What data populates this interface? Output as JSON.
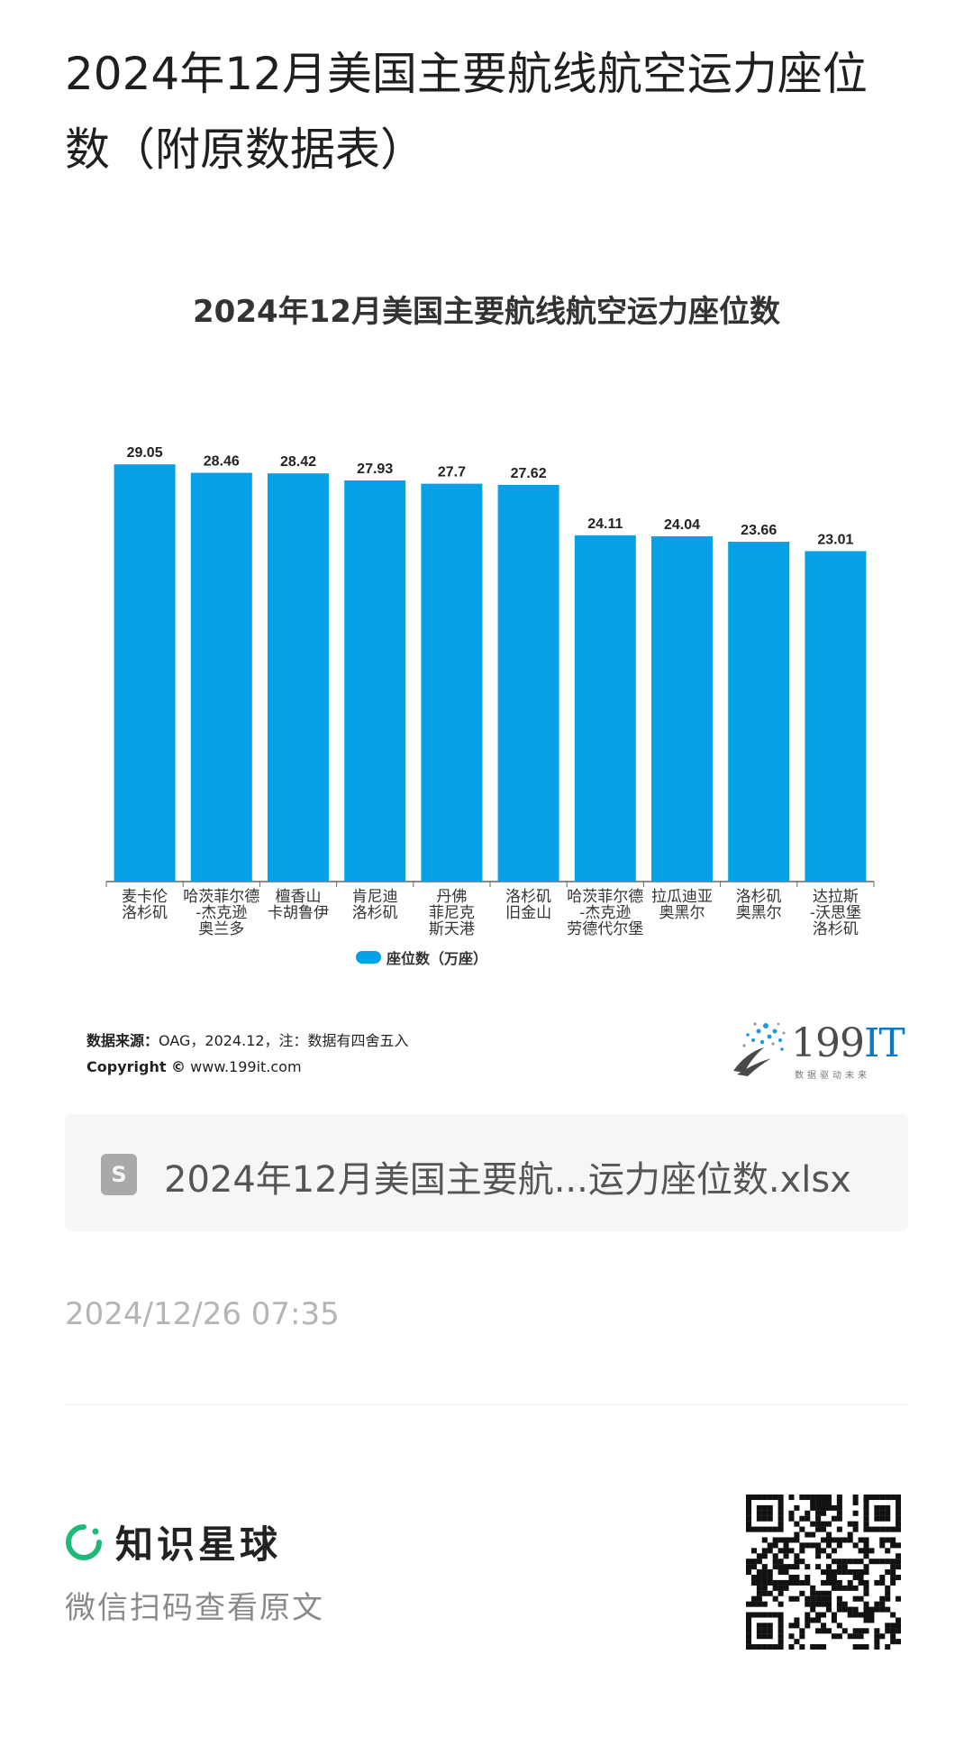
{
  "post": {
    "title": "2024年12月美国主要航线航空运力座位数（附原数据表）"
  },
  "chart_data": {
    "type": "bar",
    "title": "2024年12月美国主要航线航空运力座位数",
    "categories": [
      [
        "麦卡伦",
        "洛杉矶"
      ],
      [
        "哈茨菲尔德",
        "-杰克逊",
        "奥兰多"
      ],
      [
        "檀香山",
        "卡胡鲁伊"
      ],
      [
        "肯尼迪",
        "洛杉矶"
      ],
      [
        "丹佛",
        "菲尼克",
        "斯天港"
      ],
      [
        "洛杉矶",
        "旧金山"
      ],
      [
        "哈茨菲尔德",
        "-杰克逊",
        "劳德代尔堡"
      ],
      [
        "拉瓜迪亚",
        "奥黑尔"
      ],
      [
        "洛杉矶",
        "奥黑尔"
      ],
      [
        "达拉斯",
        "-沃思堡",
        "洛杉矶"
      ]
    ],
    "series": [
      {
        "name": "座位数（万座）",
        "values": [
          29.05,
          28.46,
          28.42,
          27.93,
          27.7,
          27.62,
          24.11,
          24.04,
          23.66,
          23.01
        ],
        "labels": [
          "29.05",
          "28.46",
          "28.42",
          "27.93",
          "27.7",
          "27.62",
          "24.11",
          "24.04",
          "23.66",
          "23.01"
        ],
        "color": "#06a0e6"
      }
    ],
    "ylim": [
      0,
      30
    ],
    "grid": false,
    "legend": "bottom"
  },
  "source": {
    "label": "数据来源：",
    "text": "OAG，2024.12，注：数据有四舍五入",
    "copyright_label": "Copyright ©",
    "copyright_text": "www.199it.com"
  },
  "logo": {
    "text_a": "199",
    "text_b": "IT",
    "sub": "数据驱动未来"
  },
  "file": {
    "icon_letter": "S",
    "name": "2024年12月美国主要航...运力座位数.xlsx"
  },
  "date": "2024/12/26 07:35",
  "brand": {
    "name": "知识星球",
    "sub": "微信扫码查看原文",
    "accent": "#1fb978"
  }
}
